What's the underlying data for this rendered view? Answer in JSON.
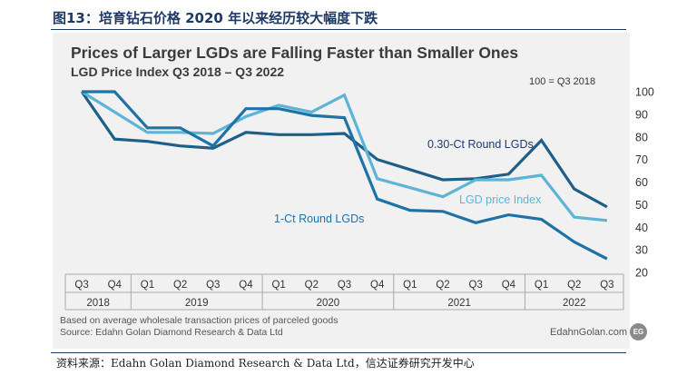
{
  "figure_caption": "图13：培育钻石价格 2020 年以来经历较大幅度下跌",
  "source_note": "资料来源：Edahn Golan Diamond Research & Data Ltd，信达证券研究开发中心",
  "chart_data": {
    "type": "line",
    "title": "Prices of Larger LGDs are Falling Faster than Smaller Ones",
    "subtitle": "LGD Price Index Q3 2018 – Q3 2022",
    "base_note": "100 = Q3 2018",
    "categories": [
      "Q3",
      "Q4",
      "Q1",
      "Q2",
      "Q3",
      "Q4",
      "Q1",
      "Q2",
      "Q3",
      "Q4",
      "Q1",
      "Q2",
      "Q3",
      "Q4",
      "Q1",
      "Q2",
      "Q3"
    ],
    "year_groups": [
      {
        "label": "2018",
        "quarters": 2
      },
      {
        "label": "2019",
        "quarters": 4
      },
      {
        "label": "2020",
        "quarters": 4
      },
      {
        "label": "2021",
        "quarters": 4
      },
      {
        "label": "2022",
        "quarters": 3
      }
    ],
    "ylim": [
      20,
      100
    ],
    "yticks": [
      "100",
      "90",
      "80",
      "70",
      "60",
      "50",
      "40",
      "30",
      "20"
    ],
    "y_axis_side": "right",
    "grid": false,
    "series": [
      {
        "name": "0.30-Ct Round LGDs",
        "color": "#1d5f86",
        "values": [
          100,
          79,
          78,
          76,
          75,
          82,
          81,
          81,
          81.5,
          70,
          65.5,
          61,
          61.5,
          63.5,
          78.5,
          57,
          49
        ]
      },
      {
        "name": "LGD price Index",
        "color": "#5db4d6",
        "values": [
          100,
          91,
          82,
          82,
          81.5,
          89,
          94,
          91,
          98.5,
          61.5,
          57.5,
          53.5,
          61,
          61,
          63,
          44.5,
          43
        ]
      },
      {
        "name": "1-Ct Round LGDs",
        "color": "#1e72a6",
        "values": [
          100,
          100,
          84,
          84,
          76,
          92.5,
          92.5,
          89.5,
          88.5,
          52.5,
          47.5,
          47,
          42,
          45.5,
          43.5,
          33.5,
          26
        ]
      }
    ]
  },
  "footer": {
    "line1": "Based on average wholesale transaction prices of parceled goods",
    "line2": "Source: Edahn Golan Diamond Research & Data Ltd",
    "website": "EdahnGolan.com",
    "logo_text": "EG"
  }
}
